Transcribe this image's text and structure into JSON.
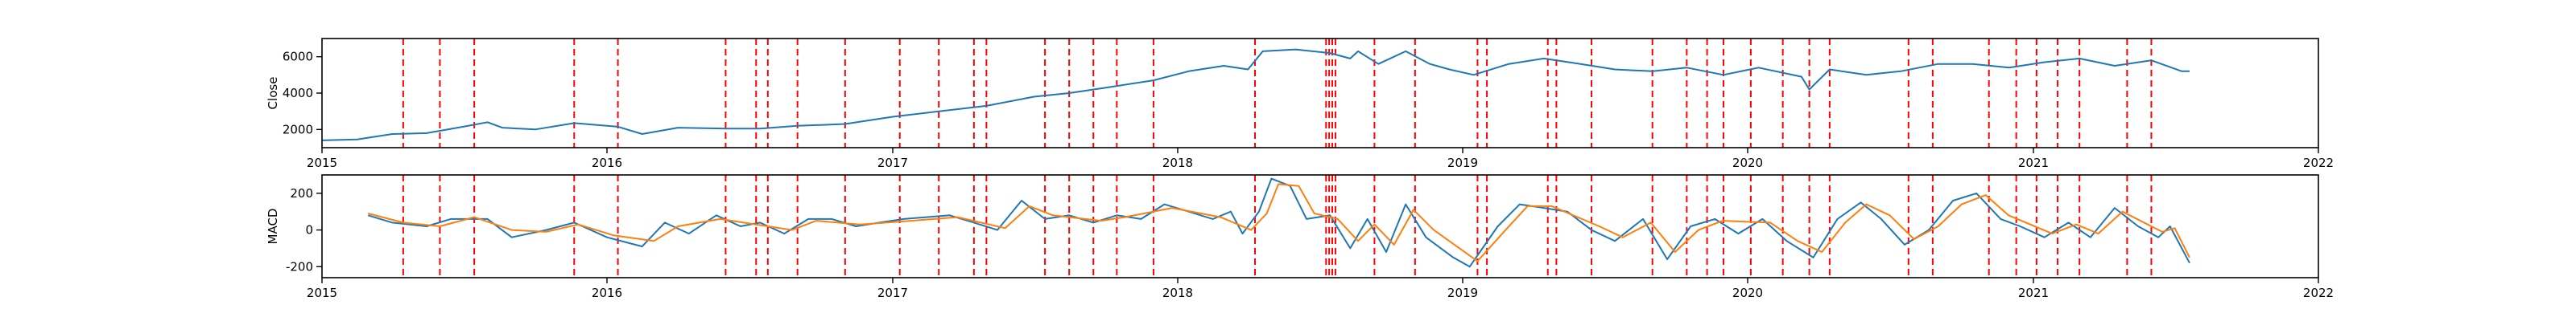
{
  "chart_data": [
    {
      "type": "line",
      "ylabel": "Close",
      "xlim": [
        "2015-01-01",
        "2022-01-01"
      ],
      "ylim": [
        1000,
        7000
      ],
      "xticks": [
        "2015",
        "2016",
        "2017",
        "2018",
        "2019",
        "2020",
        "2021",
        "2022"
      ],
      "yticks": [
        2000,
        4000,
        6000
      ],
      "series": [
        {
          "color": "#1f77b4",
          "points": [
            [
              "2015-01-01",
              1400
            ],
            [
              "2015-02-15",
              1450
            ],
            [
              "2015-04-01",
              1750
            ],
            [
              "2015-05-15",
              1800
            ],
            [
              "2015-07-01",
              2150
            ],
            [
              "2015-08-01",
              2400
            ],
            [
              "2015-08-20",
              2100
            ],
            [
              "2015-10-01",
              2000
            ],
            [
              "2015-11-20",
              2350
            ],
            [
              "2016-01-15",
              2150
            ],
            [
              "2016-02-15",
              1750
            ],
            [
              "2016-04-01",
              2100
            ],
            [
              "2016-06-01",
              2050
            ],
            [
              "2016-07-15",
              2050
            ],
            [
              "2016-09-01",
              2200
            ],
            [
              "2016-11-01",
              2300
            ],
            [
              "2017-01-01",
              2700
            ],
            [
              "2017-03-01",
              3000
            ],
            [
              "2017-05-01",
              3300
            ],
            [
              "2017-07-01",
              3800
            ],
            [
              "2017-08-15",
              4000
            ],
            [
              "2017-10-01",
              4300
            ],
            [
              "2017-12-01",
              4700
            ],
            [
              "2018-01-15",
              5200
            ],
            [
              "2018-03-01",
              5500
            ],
            [
              "2018-04-01",
              5300
            ],
            [
              "2018-04-20",
              6300
            ],
            [
              "2018-06-01",
              6400
            ],
            [
              "2018-07-15",
              6200
            ],
            [
              "2018-08-10",
              5900
            ],
            [
              "2018-08-20",
              6300
            ],
            [
              "2018-09-15",
              5600
            ],
            [
              "2018-10-20",
              6300
            ],
            [
              "2018-11-20",
              5600
            ],
            [
              "2018-12-15",
              5300
            ],
            [
              "2019-01-15",
              5000
            ],
            [
              "2019-03-01",
              5600
            ],
            [
              "2019-04-15",
              5900
            ],
            [
              "2019-06-01",
              5600
            ],
            [
              "2019-07-15",
              5300
            ],
            [
              "2019-09-01",
              5200
            ],
            [
              "2019-10-15",
              5400
            ],
            [
              "2019-12-01",
              5000
            ],
            [
              "2020-01-15",
              5400
            ],
            [
              "2020-03-10",
              4900
            ],
            [
              "2020-03-20",
              4200
            ],
            [
              "2020-04-15",
              5300
            ],
            [
              "2020-06-01",
              5000
            ],
            [
              "2020-07-15",
              5200
            ],
            [
              "2020-09-01",
              5600
            ],
            [
              "2020-10-15",
              5600
            ],
            [
              "2020-12-01",
              5400
            ],
            [
              "2021-01-15",
              5700
            ],
            [
              "2021-03-01",
              5900
            ],
            [
              "2021-04-15",
              5500
            ],
            [
              "2021-06-01",
              5800
            ],
            [
              "2021-07-10",
              5200
            ],
            [
              "2021-07-20",
              5200
            ]
          ]
        }
      ]
    },
    {
      "type": "line",
      "ylabel": "MACD",
      "xlim": [
        "2015-01-01",
        "2022-01-01"
      ],
      "ylim": [
        -260,
        300
      ],
      "xticks": [
        "2015",
        "2016",
        "2017",
        "2018",
        "2019",
        "2020",
        "2021",
        "2022"
      ],
      "yticks": [
        -200,
        0,
        200
      ],
      "series": [
        {
          "color": "#1f77b4",
          "points": [
            [
              "2015-03-01",
              80
            ],
            [
              "2015-04-01",
              40
            ],
            [
              "2015-05-15",
              20
            ],
            [
              "2015-06-15",
              60
            ],
            [
              "2015-08-01",
              60
            ],
            [
              "2015-09-01",
              -40
            ],
            [
              "2015-10-15",
              0
            ],
            [
              "2015-11-20",
              40
            ],
            [
              "2016-01-01",
              -40
            ],
            [
              "2016-02-15",
              -90
            ],
            [
              "2016-03-15",
              40
            ],
            [
              "2016-04-15",
              -20
            ],
            [
              "2016-05-20",
              80
            ],
            [
              "2016-06-20",
              20
            ],
            [
              "2016-07-15",
              40
            ],
            [
              "2016-08-15",
              -20
            ],
            [
              "2016-09-15",
              60
            ],
            [
              "2016-10-15",
              60
            ],
            [
              "2016-11-15",
              20
            ],
            [
              "2016-12-15",
              40
            ],
            [
              "2017-01-15",
              60
            ],
            [
              "2017-03-15",
              80
            ],
            [
              "2017-04-15",
              40
            ],
            [
              "2017-05-15",
              0
            ],
            [
              "2017-06-15",
              160
            ],
            [
              "2017-07-15",
              60
            ],
            [
              "2017-08-15",
              80
            ],
            [
              "2017-09-15",
              40
            ],
            [
              "2017-10-15",
              80
            ],
            [
              "2017-11-15",
              60
            ],
            [
              "2017-12-15",
              140
            ],
            [
              "2018-01-15",
              100
            ],
            [
              "2018-02-15",
              60
            ],
            [
              "2018-03-10",
              100
            ],
            [
              "2018-03-25",
              -20
            ],
            [
              "2018-04-15",
              100
            ],
            [
              "2018-05-01",
              280
            ],
            [
              "2018-05-25",
              240
            ],
            [
              "2018-06-15",
              60
            ],
            [
              "2018-07-15",
              80
            ],
            [
              "2018-08-10",
              -100
            ],
            [
              "2018-09-01",
              60
            ],
            [
              "2018-09-25",
              -120
            ],
            [
              "2018-10-20",
              140
            ],
            [
              "2018-11-15",
              -40
            ],
            [
              "2018-12-20",
              -150
            ],
            [
              "2019-01-10",
              -200
            ],
            [
              "2019-02-15",
              20
            ],
            [
              "2019-03-15",
              140
            ],
            [
              "2019-04-15",
              120
            ],
            [
              "2019-05-15",
              100
            ],
            [
              "2019-06-15",
              0
            ],
            [
              "2019-07-15",
              -60
            ],
            [
              "2019-08-20",
              60
            ],
            [
              "2019-09-20",
              -160
            ],
            [
              "2019-10-20",
              20
            ],
            [
              "2019-11-20",
              60
            ],
            [
              "2019-12-20",
              -20
            ],
            [
              "2020-01-20",
              60
            ],
            [
              "2020-02-20",
              -60
            ],
            [
              "2020-03-25",
              -150
            ],
            [
              "2020-04-25",
              60
            ],
            [
              "2020-05-25",
              150
            ],
            [
              "2020-06-20",
              60
            ],
            [
              "2020-07-20",
              -80
            ],
            [
              "2020-08-20",
              0
            ],
            [
              "2020-09-20",
              160
            ],
            [
              "2020-10-20",
              200
            ],
            [
              "2020-11-20",
              60
            ],
            [
              "2020-12-15",
              20
            ],
            [
              "2021-01-15",
              -40
            ],
            [
              "2021-02-15",
              40
            ],
            [
              "2021-03-15",
              -40
            ],
            [
              "2021-04-15",
              120
            ],
            [
              "2021-05-15",
              20
            ],
            [
              "2021-06-10",
              -40
            ],
            [
              "2021-06-25",
              20
            ],
            [
              "2021-07-20",
              -180
            ]
          ]
        },
        {
          "color": "#ff7f0e",
          "points": [
            [
              "2015-03-01",
              90
            ],
            [
              "2015-04-15",
              40
            ],
            [
              "2015-06-01",
              20
            ],
            [
              "2015-07-15",
              70
            ],
            [
              "2015-09-01",
              0
            ],
            [
              "2015-10-15",
              -10
            ],
            [
              "2015-11-25",
              30
            ],
            [
              "2016-01-10",
              -30
            ],
            [
              "2016-03-01",
              -60
            ],
            [
              "2016-04-01",
              20
            ],
            [
              "2016-05-25",
              60
            ],
            [
              "2016-07-10",
              30
            ],
            [
              "2016-08-25",
              0
            ],
            [
              "2016-09-25",
              50
            ],
            [
              "2016-11-20",
              30
            ],
            [
              "2017-01-25",
              50
            ],
            [
              "2017-03-25",
              70
            ],
            [
              "2017-05-25",
              10
            ],
            [
              "2017-06-25",
              130
            ],
            [
              "2017-07-25",
              80
            ],
            [
              "2017-09-25",
              50
            ],
            [
              "2017-10-25",
              70
            ],
            [
              "2017-12-25",
              120
            ],
            [
              "2018-02-25",
              70
            ],
            [
              "2018-04-05",
              0
            ],
            [
              "2018-04-25",
              90
            ],
            [
              "2018-05-10",
              250
            ],
            [
              "2018-06-05",
              240
            ],
            [
              "2018-06-25",
              90
            ],
            [
              "2018-07-25",
              60
            ],
            [
              "2018-08-20",
              -60
            ],
            [
              "2018-09-10",
              30
            ],
            [
              "2018-10-05",
              -80
            ],
            [
              "2018-10-30",
              110
            ],
            [
              "2018-11-25",
              0
            ],
            [
              "2019-01-20",
              -170
            ],
            [
              "2019-02-25",
              0
            ],
            [
              "2019-03-25",
              130
            ],
            [
              "2019-04-25",
              130
            ],
            [
              "2019-06-25",
              20
            ],
            [
              "2019-07-25",
              -40
            ],
            [
              "2019-08-30",
              40
            ],
            [
              "2019-09-30",
              -120
            ],
            [
              "2019-10-30",
              0
            ],
            [
              "2019-11-30",
              50
            ],
            [
              "2020-01-30",
              40
            ],
            [
              "2020-03-05",
              -60
            ],
            [
              "2020-04-05",
              -120
            ],
            [
              "2020-05-05",
              40
            ],
            [
              "2020-06-01",
              140
            ],
            [
              "2020-07-01",
              80
            ],
            [
              "2020-08-01",
              -50
            ],
            [
              "2020-09-01",
              20
            ],
            [
              "2020-10-01",
              140
            ],
            [
              "2020-11-01",
              190
            ],
            [
              "2020-11-30",
              80
            ],
            [
              "2021-01-25",
              -20
            ],
            [
              "2021-02-25",
              30
            ],
            [
              "2021-03-25",
              -20
            ],
            [
              "2021-04-25",
              100
            ],
            [
              "2021-06-15",
              -10
            ],
            [
              "2021-07-01",
              10
            ],
            [
              "2021-07-20",
              -150
            ]
          ]
        }
      ]
    }
  ],
  "signal_dates": [
    "2015-04-15",
    "2015-06-01",
    "2015-07-15",
    "2015-11-20",
    "2016-01-15",
    "2016-06-01",
    "2016-07-10",
    "2016-07-25",
    "2016-09-01",
    "2016-11-01",
    "2017-01-10",
    "2017-03-01",
    "2017-04-15",
    "2017-05-01",
    "2017-07-15",
    "2017-08-15",
    "2017-09-15",
    "2017-10-15",
    "2017-12-01",
    "2018-04-10",
    "2018-07-10",
    "2018-07-14",
    "2018-07-18",
    "2018-07-22",
    "2018-09-10",
    "2018-11-01",
    "2019-01-20",
    "2019-02-01",
    "2019-04-20",
    "2019-05-01",
    "2019-06-15",
    "2019-09-01",
    "2019-10-15",
    "2019-11-10",
    "2019-12-01",
    "2020-01-05",
    "2020-02-15",
    "2020-03-20",
    "2020-04-15",
    "2020-07-25",
    "2020-08-25",
    "2020-11-05",
    "2020-12-10",
    "2021-01-05",
    "2021-02-01",
    "2021-03-01",
    "2021-05-01",
    "2021-06-01"
  ],
  "colors": {
    "close": "#1f77b4",
    "macd": "#1f77b4",
    "signal": "#ff7f0e",
    "marker": "#ff0000"
  }
}
